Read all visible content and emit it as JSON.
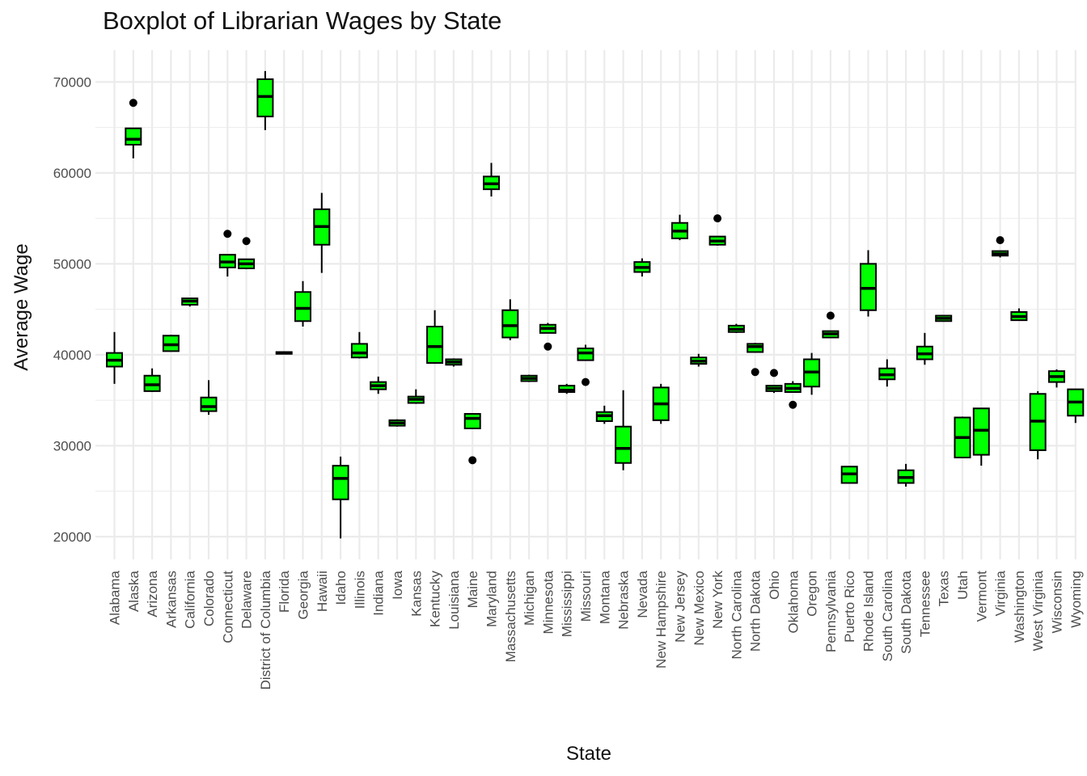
{
  "chart_data": {
    "type": "boxplot",
    "title": "Boxplot of Librarian Wages by State",
    "xlabel": "State",
    "ylabel": "Average Wage",
    "ylim": [
      17500,
      73500
    ],
    "yticks": [
      20000,
      30000,
      40000,
      50000,
      60000,
      70000
    ],
    "grid": true,
    "legend": "none",
    "box_fill": "#00ff00",
    "box_stroke": "#000000",
    "categories": [
      "Alabama",
      "Alaska",
      "Arizona",
      "Arkansas",
      "California",
      "Colorado",
      "Connecticut",
      "Delaware",
      "District of Columbia",
      "Florida",
      "Georgia",
      "Hawaii",
      "Idaho",
      "Illinois",
      "Indiana",
      "Iowa",
      "Kansas",
      "Kentucky",
      "Louisiana",
      "Maine",
      "Maryland",
      "Massachusetts",
      "Michigan",
      "Minnesota",
      "Mississippi",
      "Missouri",
      "Montana",
      "Nebraska",
      "Nevada",
      "New Hampshire",
      "New Jersey",
      "New Mexico",
      "New York",
      "North Carolina",
      "North Dakota",
      "Ohio",
      "Oklahoma",
      "Oregon",
      "Pennsylvania",
      "Puerto Rico",
      "Rhode Island",
      "South Carolina",
      "South Dakota",
      "Tennessee",
      "Texas",
      "Utah",
      "Vermont",
      "Virginia",
      "Washington",
      "West Virginia",
      "Wisconsin",
      "Wyoming"
    ],
    "boxes": [
      {
        "wlo": 36800,
        "q1": 38700,
        "med": 39400,
        "q3": 40200,
        "whi": 42500,
        "out": []
      },
      {
        "wlo": 61600,
        "q1": 63100,
        "med": 63700,
        "q3": 64900,
        "whi": 64900,
        "out": [
          67700
        ]
      },
      {
        "wlo": 35900,
        "q1": 36000,
        "med": 36700,
        "q3": 37700,
        "whi": 38500,
        "out": []
      },
      {
        "wlo": 40400,
        "q1": 40400,
        "med": 41100,
        "q3": 42100,
        "whi": 42200,
        "out": []
      },
      {
        "wlo": 45300,
        "q1": 45500,
        "med": 45900,
        "q3": 46200,
        "whi": 46200,
        "out": []
      },
      {
        "wlo": 33400,
        "q1": 33800,
        "med": 34300,
        "q3": 35300,
        "whi": 37200,
        "out": []
      },
      {
        "wlo": 48600,
        "q1": 49600,
        "med": 50200,
        "q3": 51000,
        "whi": 51000,
        "out": [
          53300
        ]
      },
      {
        "wlo": 49400,
        "q1": 49500,
        "med": 50000,
        "q3": 50500,
        "whi": 50500,
        "out": [
          52500
        ]
      },
      {
        "wlo": 64700,
        "q1": 66200,
        "med": 68400,
        "q3": 70300,
        "whi": 71200,
        "out": []
      },
      {
        "wlo": 40100,
        "q1": 40100,
        "med": 40200,
        "q3": 40300,
        "whi": 40300,
        "out": []
      },
      {
        "wlo": 43100,
        "q1": 43700,
        "med": 45100,
        "q3": 46900,
        "whi": 48100,
        "out": []
      },
      {
        "wlo": 49000,
        "q1": 52100,
        "med": 54100,
        "q3": 56000,
        "whi": 57800,
        "out": []
      },
      {
        "wlo": 19800,
        "q1": 24100,
        "med": 26400,
        "q3": 27800,
        "whi": 28800,
        "out": []
      },
      {
        "wlo": 39600,
        "q1": 39700,
        "med": 40200,
        "q3": 41200,
        "whi": 42500,
        "out": []
      },
      {
        "wlo": 35700,
        "q1": 36200,
        "med": 36600,
        "q3": 37000,
        "whi": 37600,
        "out": []
      },
      {
        "wlo": 32100,
        "q1": 32200,
        "med": 32500,
        "q3": 32800,
        "whi": 32900,
        "out": []
      },
      {
        "wlo": 34600,
        "q1": 34700,
        "med": 35100,
        "q3": 35400,
        "whi": 36200,
        "out": []
      },
      {
        "wlo": 39000,
        "q1": 39100,
        "med": 40900,
        "q3": 43100,
        "whi": 44900,
        "out": []
      },
      {
        "wlo": 38700,
        "q1": 38900,
        "med": 39200,
        "q3": 39500,
        "whi": 39600,
        "out": []
      },
      {
        "wlo": 31900,
        "q1": 31900,
        "med": 33000,
        "q3": 33500,
        "whi": 33500,
        "out": [
          28400
        ]
      },
      {
        "wlo": 57400,
        "q1": 58200,
        "med": 58800,
        "q3": 59600,
        "whi": 61100,
        "out": []
      },
      {
        "wlo": 41600,
        "q1": 41900,
        "med": 43200,
        "q3": 44900,
        "whi": 46100,
        "out": []
      },
      {
        "wlo": 37000,
        "q1": 37100,
        "med": 37400,
        "q3": 37700,
        "whi": 37800,
        "out": []
      },
      {
        "wlo": 42400,
        "q1": 42400,
        "med": 42900,
        "q3": 43300,
        "whi": 43500,
        "out": [
          40900
        ]
      },
      {
        "wlo": 35700,
        "q1": 35900,
        "med": 36100,
        "q3": 36600,
        "whi": 36800,
        "out": []
      },
      {
        "wlo": 39400,
        "q1": 39400,
        "med": 40200,
        "q3": 40700,
        "whi": 41100,
        "out": [
          37000
        ]
      },
      {
        "wlo": 32400,
        "q1": 32700,
        "med": 33300,
        "q3": 33700,
        "whi": 34400,
        "out": []
      },
      {
        "wlo": 27300,
        "q1": 28100,
        "med": 29700,
        "q3": 32100,
        "whi": 36100,
        "out": []
      },
      {
        "wlo": 48600,
        "q1": 49100,
        "med": 49600,
        "q3": 50200,
        "whi": 50600,
        "out": []
      },
      {
        "wlo": 32400,
        "q1": 32800,
        "med": 34600,
        "q3": 36400,
        "whi": 36800,
        "out": []
      },
      {
        "wlo": 52600,
        "q1": 52800,
        "med": 53600,
        "q3": 54500,
        "whi": 55400,
        "out": []
      },
      {
        "wlo": 38700,
        "q1": 39000,
        "med": 39300,
        "q3": 39700,
        "whi": 40100,
        "out": []
      },
      {
        "wlo": 52000,
        "q1": 52100,
        "med": 52500,
        "q3": 53000,
        "whi": 53000,
        "out": [
          55000
        ]
      },
      {
        "wlo": 42400,
        "q1": 42500,
        "med": 42800,
        "q3": 43200,
        "whi": 43400,
        "out": []
      },
      {
        "wlo": 40300,
        "q1": 40300,
        "med": 40900,
        "q3": 41200,
        "whi": 41300,
        "out": [
          38100
        ]
      },
      {
        "wlo": 35800,
        "q1": 36000,
        "med": 36300,
        "q3": 36600,
        "whi": 36600,
        "out": [
          38000
        ]
      },
      {
        "wlo": 35900,
        "q1": 35900,
        "med": 36300,
        "q3": 36800,
        "whi": 37100,
        "out": [
          34500
        ]
      },
      {
        "wlo": 35600,
        "q1": 36500,
        "med": 38100,
        "q3": 39500,
        "whi": 40200,
        "out": []
      },
      {
        "wlo": 41900,
        "q1": 41900,
        "med": 42300,
        "q3": 42600,
        "whi": 42600,
        "out": [
          44300
        ]
      },
      {
        "wlo": 25900,
        "q1": 25900,
        "med": 26900,
        "q3": 27700,
        "whi": 27700,
        "out": []
      },
      {
        "wlo": 44200,
        "q1": 44900,
        "med": 47300,
        "q3": 50000,
        "whi": 51500,
        "out": []
      },
      {
        "wlo": 36500,
        "q1": 37300,
        "med": 37800,
        "q3": 38500,
        "whi": 39500,
        "out": []
      },
      {
        "wlo": 25500,
        "q1": 25900,
        "med": 26500,
        "q3": 27300,
        "whi": 28000,
        "out": []
      },
      {
        "wlo": 38900,
        "q1": 39500,
        "med": 40100,
        "q3": 40900,
        "whi": 42400,
        "out": []
      },
      {
        "wlo": 43700,
        "q1": 43700,
        "med": 44000,
        "q3": 44300,
        "whi": 44300,
        "out": []
      },
      {
        "wlo": 28700,
        "q1": 28700,
        "med": 30900,
        "q3": 33100,
        "whi": 33200,
        "out": []
      },
      {
        "wlo": 27800,
        "q1": 29000,
        "med": 31700,
        "q3": 34100,
        "whi": 34100,
        "out": []
      },
      {
        "wlo": 50700,
        "q1": 50900,
        "med": 51100,
        "q3": 51400,
        "whi": 51400,
        "out": [
          52600
        ]
      },
      {
        "wlo": 43800,
        "q1": 43800,
        "med": 44200,
        "q3": 44700,
        "whi": 45100,
        "out": []
      },
      {
        "wlo": 28500,
        "q1": 29500,
        "med": 32700,
        "q3": 35700,
        "whi": 36000,
        "out": []
      },
      {
        "wlo": 36400,
        "q1": 37000,
        "med": 37600,
        "q3": 38200,
        "whi": 38400,
        "out": []
      },
      {
        "wlo": 32500,
        "q1": 33300,
        "med": 34800,
        "q3": 36200,
        "whi": 36200,
        "out": []
      }
    ]
  }
}
